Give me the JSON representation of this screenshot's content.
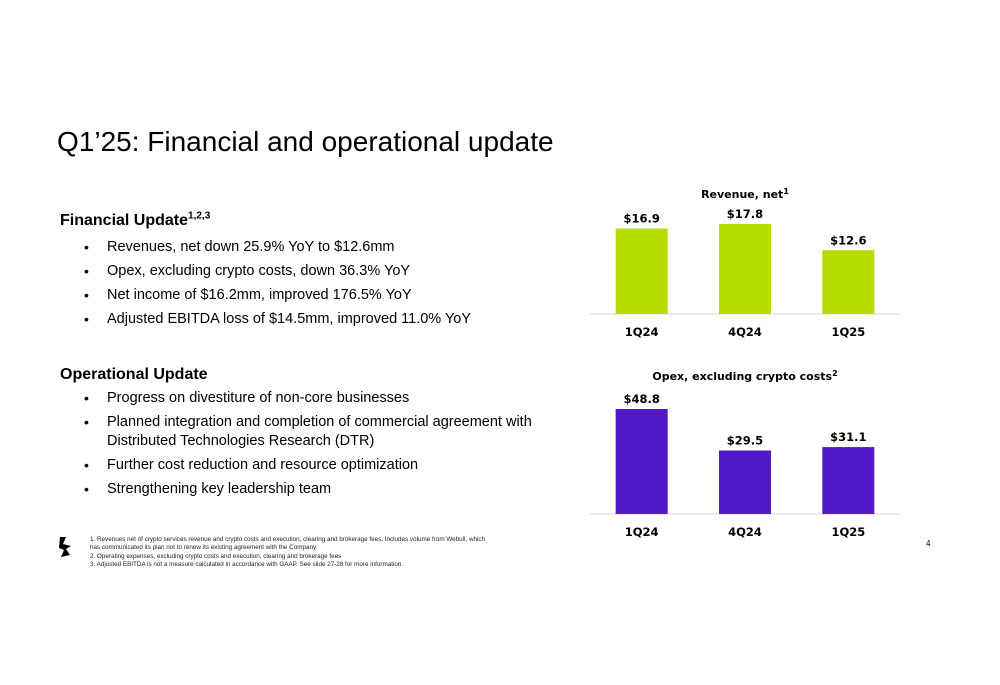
{
  "slide": {
    "title": "Q1’25: Financial and operational update",
    "page_number": "4"
  },
  "financial_update": {
    "heading": "Financial Update",
    "heading_sup": "1,2,3",
    "bullets": [
      "Revenues, net down 25.9% YoY to $12.6mm",
      "Opex, excluding crypto costs, down 36.3% YoY",
      "Net income of $16.2mm, improved 176.5% YoY",
      "Adjusted EBITDA loss of $14.5mm, improved 11.0% YoY"
    ]
  },
  "operational_update": {
    "heading": "Operational Update",
    "bullets": [
      "Progress on divestiture of non-core businesses",
      "Planned integration and completion of commercial agreement with Distributed Technologies Research (DTR)",
      "Further cost reduction and resource optimization",
      "Strengthening key leadership team"
    ]
  },
  "footnotes": [
    "1. Revenues net of crypto services revenue and crypto costs and execution, clearing and brokerage fees. Includes volume from Webull, which",
    "has communicated its plan not to renew its existing agreement with the Company.",
    "2. Operating expenses, excluding crypto costs and execution, clearing and brokerage fees",
    "3. Adjusted EBITDA is not a measure calculated in accordance with GAAP. See slide 27-28 for more information."
  ],
  "logo_icon": "bakkt-logo-icon",
  "chart_data": [
    {
      "type": "bar",
      "title": "Revenue, net",
      "title_sup": "1",
      "categories": [
        "1Q24",
        "4Q24",
        "1Q25"
      ],
      "values": [
        16.9,
        17.8,
        12.6
      ],
      "value_labels": [
        "$16.9",
        "$17.8",
        "$12.6"
      ],
      "color": "#b5dd00",
      "ylim": [
        0,
        17.8
      ],
      "grid": false
    },
    {
      "type": "bar",
      "title": "Opex, excluding crypto costs",
      "title_sup": "2",
      "categories": [
        "1Q24",
        "4Q24",
        "1Q25"
      ],
      "values": [
        48.8,
        29.5,
        31.1
      ],
      "value_labels": [
        "$48.8",
        "$29.5",
        "$31.1"
      ],
      "color": "#5218c8",
      "ylim": [
        0,
        48.8
      ],
      "grid": false
    }
  ]
}
